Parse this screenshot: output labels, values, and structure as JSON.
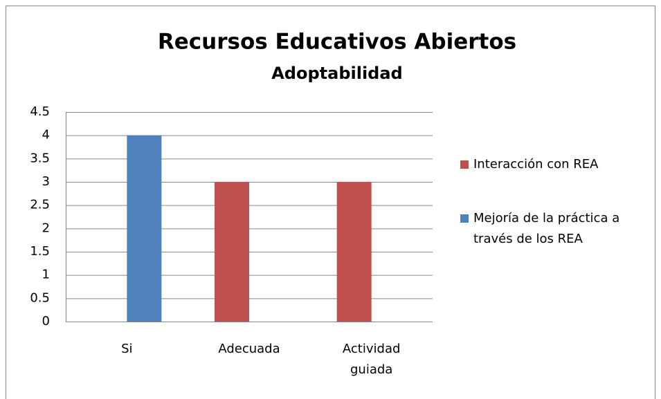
{
  "chart_data": {
    "type": "bar",
    "title": "Recursos Educativos Abiertos",
    "subtitle": "Adoptabilidad",
    "categories": [
      "Si",
      "Adecuada",
      "Actividad guiada"
    ],
    "series": [
      {
        "name": "Interacción con REA",
        "color": "#c0504d",
        "values": [
          null,
          3,
          3
        ]
      },
      {
        "name": "Mejoría de la práctica a través de los REA",
        "color": "#4f81bd",
        "values": [
          4,
          null,
          null
        ]
      }
    ],
    "ylim": [
      0,
      4.5
    ],
    "yticks": [
      0,
      0.5,
      1,
      1.5,
      2,
      2.5,
      3,
      3.5,
      4,
      4.5
    ],
    "grid": true,
    "legend": "right"
  }
}
